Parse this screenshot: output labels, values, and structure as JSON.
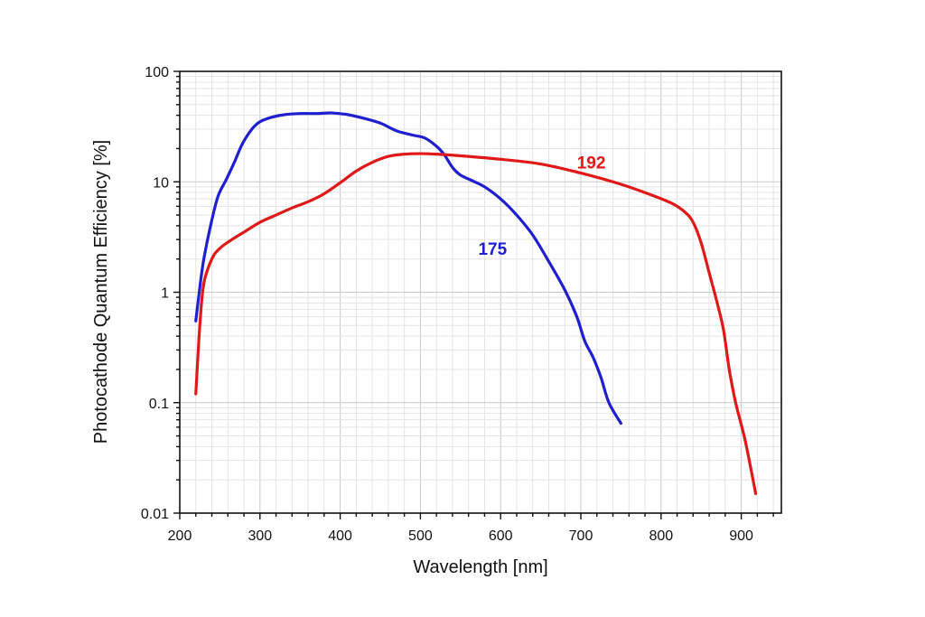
{
  "chart_data": {
    "type": "line",
    "title": "",
    "xlabel": "Wavelength [nm]",
    "ylabel": "Photocathode Quantum Efficiency [%]",
    "xlim": [
      200,
      950
    ],
    "ylim": [
      0.01,
      100
    ],
    "yscale": "log",
    "grid": true,
    "x_ticks": [
      200,
      300,
      400,
      500,
      600,
      700,
      800,
      900
    ],
    "x_tick_labels": [
      "200",
      "300",
      "400",
      "500",
      "600",
      "700",
      "800",
      "900"
    ],
    "y_ticks": [
      0.01,
      0.1,
      1,
      10,
      100
    ],
    "y_tick_labels": [
      "0.01",
      "0.1",
      "1",
      "10",
      "100"
    ],
    "series": [
      {
        "name": "175",
        "label": "175",
        "label_at": [
          590,
          2.5
        ],
        "color": "#1f1fd0",
        "points": [
          [
            220,
            0.55
          ],
          [
            225,
            1.1
          ],
          [
            230,
            2.0
          ],
          [
            240,
            4.5
          ],
          [
            248,
            7.5
          ],
          [
            258,
            10.5
          ],
          [
            268,
            15.0
          ],
          [
            278,
            22.0
          ],
          [
            290,
            30.0
          ],
          [
            300,
            35.0
          ],
          [
            315,
            38.5
          ],
          [
            330,
            40.5
          ],
          [
            350,
            41.5
          ],
          [
            370,
            41.5
          ],
          [
            390,
            42.0
          ],
          [
            410,
            40.5
          ],
          [
            430,
            37.5
          ],
          [
            450,
            34.0
          ],
          [
            470,
            29.0
          ],
          [
            490,
            26.5
          ],
          [
            505,
            25.0
          ],
          [
            520,
            21.0
          ],
          [
            530,
            17.5
          ],
          [
            540,
            13.5
          ],
          [
            550,
            11.5
          ],
          [
            565,
            10.2
          ],
          [
            580,
            9.0
          ],
          [
            600,
            7.0
          ],
          [
            620,
            5.0
          ],
          [
            640,
            3.3
          ],
          [
            660,
            1.9
          ],
          [
            680,
            1.05
          ],
          [
            695,
            0.6
          ],
          [
            705,
            0.36
          ],
          [
            715,
            0.26
          ],
          [
            725,
            0.17
          ],
          [
            735,
            0.1
          ],
          [
            750,
            0.065
          ]
        ]
      },
      {
        "name": "192",
        "label": "192",
        "label_at": [
          713,
          15
        ],
        "color": "#e01818",
        "points": [
          [
            220,
            0.12
          ],
          [
            225,
            0.5
          ],
          [
            230,
            1.2
          ],
          [
            240,
            2.0
          ],
          [
            250,
            2.5
          ],
          [
            265,
            3.0
          ],
          [
            280,
            3.5
          ],
          [
            300,
            4.3
          ],
          [
            320,
            5.0
          ],
          [
            340,
            5.8
          ],
          [
            360,
            6.6
          ],
          [
            380,
            7.8
          ],
          [
            400,
            9.8
          ],
          [
            420,
            12.5
          ],
          [
            440,
            15.0
          ],
          [
            460,
            17.0
          ],
          [
            480,
            17.8
          ],
          [
            500,
            18.0
          ],
          [
            520,
            17.8
          ],
          [
            550,
            17.2
          ],
          [
            600,
            16.0
          ],
          [
            650,
            14.5
          ],
          [
            700,
            12.0
          ],
          [
            750,
            9.5
          ],
          [
            790,
            7.5
          ],
          [
            815,
            6.3
          ],
          [
            830,
            5.3
          ],
          [
            840,
            4.3
          ],
          [
            850,
            2.8
          ],
          [
            860,
            1.5
          ],
          [
            870,
            0.8
          ],
          [
            878,
            0.45
          ],
          [
            885,
            0.2
          ],
          [
            893,
            0.1
          ],
          [
            905,
            0.045
          ],
          [
            918,
            0.015
          ]
        ]
      }
    ]
  }
}
